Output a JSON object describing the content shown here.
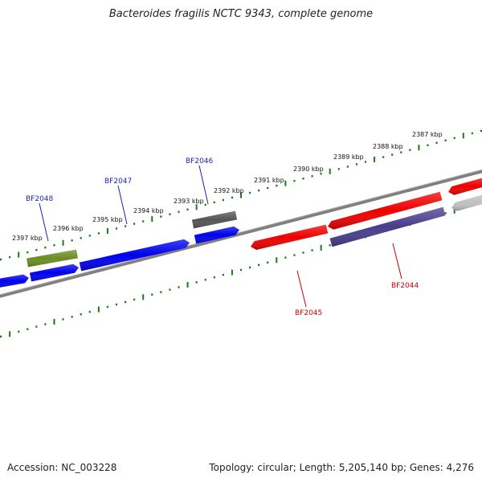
{
  "title": "Bacteroides fragilis NCTC 9343, complete genome",
  "footer": {
    "accession": "Accession: NC_003228",
    "summary": "Topology: circular; Length: 5,205,140 bp; Genes: 4,276"
  },
  "colors": {
    "forward_label": "#1f1fb4",
    "reverse_label": "#cc0000",
    "backbone": "#808080",
    "ticks": "#1a7a1a"
  },
  "scale_labels": [
    {
      "text": "2397 kbp",
      "kbp": 2397
    },
    {
      "text": "2396 kbp",
      "kbp": 2396
    },
    {
      "text": "2395 kbp",
      "kbp": 2395
    },
    {
      "text": "2394 kbp",
      "kbp": 2394
    },
    {
      "text": "2393 kbp",
      "kbp": 2393
    },
    {
      "text": "2392 kbp",
      "kbp": 2392
    },
    {
      "text": "2391 kbp",
      "kbp": 2391
    },
    {
      "text": "2390 kbp",
      "kbp": 2390
    },
    {
      "text": "2389 kbp",
      "kbp": 2389
    },
    {
      "text": "2388 kbp",
      "kbp": 2388
    },
    {
      "text": "2387 kbp",
      "kbp": 2387
    }
  ],
  "genes": [
    {
      "label": "BF2048",
      "strand": "forward",
      "color": "#6b8e23"
    },
    {
      "label": "BF2047",
      "strand": "forward",
      "color": "#0000ee"
    },
    {
      "label": "BF2046",
      "strand": "forward",
      "color": "#555555"
    },
    {
      "label": "BF2045",
      "strand": "reverse",
      "color": "#ee0000"
    },
    {
      "label": "BF2044",
      "strand": "reverse",
      "color": "#483d8b"
    }
  ],
  "unlabeled_features": [
    {
      "strand": "forward",
      "color": "#0000ee"
    },
    {
      "strand": "forward",
      "color": "#0000ee"
    },
    {
      "strand": "forward",
      "color": "#0000ee"
    },
    {
      "strand": "reverse",
      "color": "#ee0000"
    },
    {
      "strand": "reverse",
      "color": "#ee0000"
    },
    {
      "strand": "reverse",
      "color": "#c0c0c0"
    }
  ]
}
